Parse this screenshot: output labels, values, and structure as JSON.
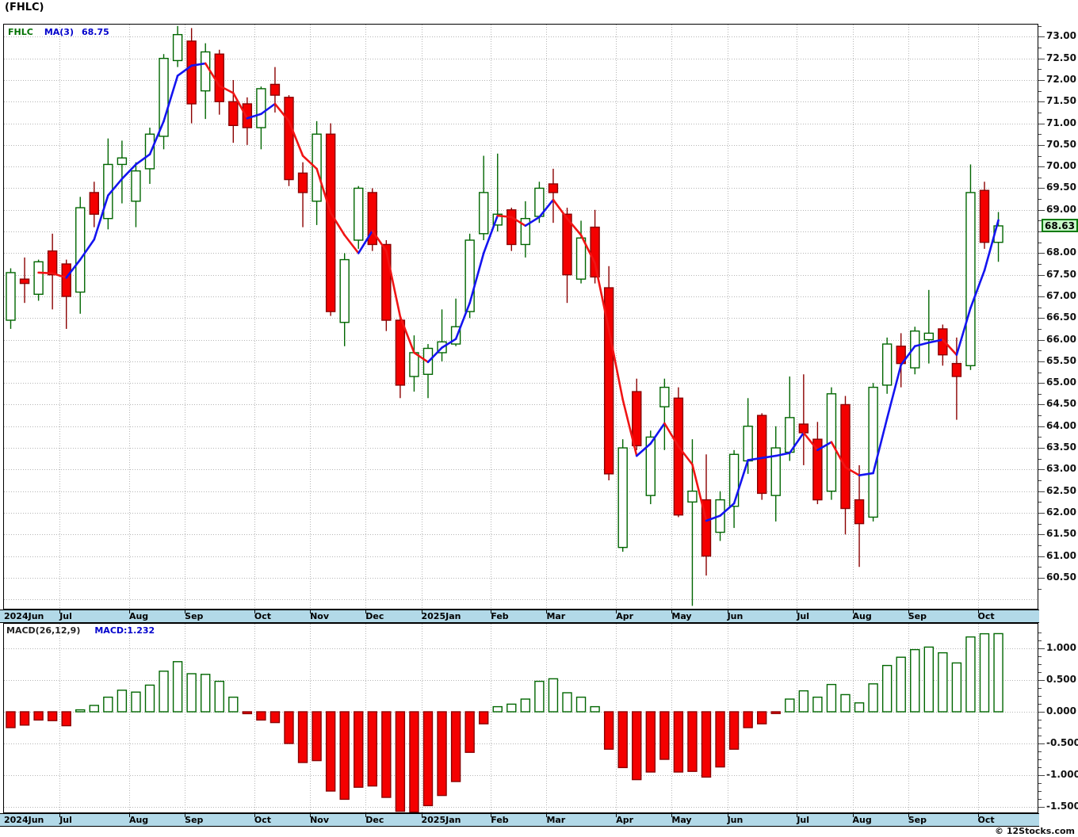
{
  "window": {
    "title": "(FHLC)"
  },
  "legend": {
    "symbol": "FHLC",
    "ma_label": "MA(3)",
    "ma_value": "68.75"
  },
  "macd_legend": {
    "label": "MACD(26,12,9)",
    "value": "MACD:1.232"
  },
  "price_badge": "68.63",
  "watermark": "© 12Stocks.com",
  "colors": {
    "up_stroke": "#006600",
    "up_fill": "#ffffff",
    "down_stroke": "#8b0000",
    "down_fill": "#f40000",
    "ma_up": "#1414f0",
    "ma_down": "#f01414",
    "grid": "#b5b5b5",
    "border": "#000000",
    "band_bg": "#b2d9e8",
    "badge_bg": "#c9f7c9",
    "badge_border": "#0a7a0a",
    "legend_symbol": "#007000",
    "legend_blue": "#0000cc"
  },
  "price_axis": {
    "labels": [
      "73.00",
      "72.50",
      "72.00",
      "71.50",
      "71.00",
      "70.50",
      "70.00",
      "69.50",
      "69.00",
      "68.00",
      "67.50",
      "67.00",
      "66.50",
      "66.00",
      "65.50",
      "65.00",
      "64.50",
      "64.00",
      "63.50",
      "63.00",
      "62.50",
      "62.00",
      "61.50",
      "61.00",
      "60.50"
    ]
  },
  "macd_axis": {
    "labels": [
      "1.000",
      "0.500",
      "0.000",
      "-0.500",
      "-1.000",
      "-1.500"
    ]
  },
  "months": [
    {
      "label": "2024Jun",
      "i": 0,
      "grid": false
    },
    {
      "label": "Jul",
      "i": 4,
      "grid": true
    },
    {
      "label": "Aug",
      "i": 9,
      "grid": true
    },
    {
      "label": "Sep",
      "i": 13,
      "grid": true
    },
    {
      "label": "Oct",
      "i": 18,
      "grid": true
    },
    {
      "label": "Nov",
      "i": 22,
      "grid": true
    },
    {
      "label": "Dec",
      "i": 26,
      "grid": true
    },
    {
      "label": "2025Jan",
      "i": 30,
      "grid": true
    },
    {
      "label": "Feb",
      "i": 35,
      "grid": true
    },
    {
      "label": "Mar",
      "i": 39,
      "grid": true
    },
    {
      "label": "Apr",
      "i": 44,
      "grid": true
    },
    {
      "label": "May",
      "i": 48,
      "grid": true
    },
    {
      "label": "Jun",
      "i": 52,
      "grid": true
    },
    {
      "label": "Jul",
      "i": 57,
      "grid": true
    },
    {
      "label": "Aug",
      "i": 61,
      "grid": true
    },
    {
      "label": "Sep",
      "i": 65,
      "grid": true
    },
    {
      "label": "Oct",
      "i": 70,
      "grid": true
    }
  ],
  "chart_data": {
    "type": "candlestick+macd-histogram",
    "symbol": "FHLC",
    "ma_period": 3,
    "ma_last": 68.75,
    "macd_params": [
      26,
      12,
      9
    ],
    "macd_last": 1.232,
    "last_close": 68.63,
    "price_ylim": [
      60.5,
      73.0
    ],
    "macd_ylim": [
      -1.5,
      1.0
    ],
    "period": "weekly, Jun 2024 - Oct 2025",
    "candles_ohlc": [
      [
        66.45,
        67.65,
        66.25,
        67.55
      ],
      [
        67.4,
        67.9,
        66.85,
        67.3
      ],
      [
        67.05,
        67.85,
        66.9,
        67.8
      ],
      [
        68.05,
        68.45,
        66.7,
        67.5
      ],
      [
        67.75,
        67.85,
        66.25,
        67.0
      ],
      [
        67.1,
        69.3,
        66.6,
        69.05
      ],
      [
        69.4,
        69.65,
        68.6,
        68.9
      ],
      [
        68.8,
        70.65,
        68.55,
        70.05
      ],
      [
        70.05,
        70.6,
        69.15,
        70.2
      ],
      [
        69.2,
        70.1,
        68.6,
        69.9
      ],
      [
        69.95,
        70.9,
        69.6,
        70.75
      ],
      [
        70.7,
        72.6,
        70.4,
        72.5
      ],
      [
        72.45,
        73.25,
        72.3,
        73.05
      ],
      [
        72.9,
        73.2,
        71.0,
        71.45
      ],
      [
        71.75,
        72.85,
        71.1,
        72.65
      ],
      [
        72.6,
        72.7,
        71.2,
        71.5
      ],
      [
        71.5,
        72.0,
        70.55,
        70.95
      ],
      [
        71.45,
        71.6,
        70.5,
        70.9
      ],
      [
        70.9,
        71.85,
        70.4,
        71.8
      ],
      [
        71.9,
        72.3,
        71.25,
        71.65
      ],
      [
        71.6,
        71.65,
        69.55,
        69.7
      ],
      [
        69.85,
        70.1,
        68.6,
        69.4
      ],
      [
        69.2,
        71.05,
        68.65,
        70.75
      ],
      [
        70.75,
        71.0,
        66.55,
        66.65
      ],
      [
        66.4,
        68.0,
        65.85,
        67.85
      ],
      [
        68.3,
        69.55,
        68.1,
        69.5
      ],
      [
        69.4,
        69.5,
        68.05,
        68.2
      ],
      [
        68.2,
        68.3,
        66.2,
        66.45
      ],
      [
        66.45,
        66.5,
        64.65,
        64.95
      ],
      [
        65.15,
        66.1,
        64.8,
        65.7
      ],
      [
        65.2,
        65.9,
        64.65,
        65.8
      ],
      [
        65.7,
        66.7,
        65.5,
        65.95
      ],
      [
        65.9,
        66.95,
        65.85,
        66.3
      ],
      [
        66.65,
        68.45,
        66.5,
        68.3
      ],
      [
        68.45,
        70.25,
        68.3,
        69.4
      ],
      [
        68.65,
        70.3,
        68.5,
        68.9
      ],
      [
        69.0,
        69.05,
        68.05,
        68.2
      ],
      [
        68.2,
        69.2,
        67.9,
        68.8
      ],
      [
        68.85,
        69.65,
        68.7,
        69.5
      ],
      [
        69.6,
        69.95,
        68.7,
        69.4
      ],
      [
        68.9,
        69.05,
        66.85,
        67.5
      ],
      [
        67.4,
        68.75,
        67.3,
        68.35
      ],
      [
        68.6,
        69.0,
        67.3,
        67.45
      ],
      [
        67.2,
        67.7,
        62.75,
        62.9
      ],
      [
        61.2,
        63.7,
        61.1,
        63.5
      ],
      [
        64.8,
        65.1,
        63.45,
        63.55
      ],
      [
        62.4,
        63.9,
        62.2,
        63.75
      ],
      [
        64.45,
        65.1,
        63.45,
        64.9
      ],
      [
        64.65,
        64.9,
        61.9,
        61.95
      ],
      [
        62.25,
        63.7,
        59.85,
        62.5
      ],
      [
        62.3,
        63.35,
        60.55,
        61.0
      ],
      [
        61.55,
        62.5,
        61.35,
        62.3
      ],
      [
        62.15,
        63.45,
        61.65,
        63.35
      ],
      [
        63.2,
        64.65,
        62.9,
        64.0
      ],
      [
        64.25,
        64.3,
        62.3,
        62.45
      ],
      [
        62.4,
        64.0,
        61.8,
        63.5
      ],
      [
        63.4,
        65.15,
        63.2,
        64.2
      ],
      [
        64.05,
        65.2,
        63.1,
        63.85
      ],
      [
        63.7,
        64.1,
        62.2,
        62.3
      ],
      [
        62.5,
        64.9,
        62.3,
        64.75
      ],
      [
        64.5,
        64.7,
        61.5,
        62.1
      ],
      [
        62.3,
        63.1,
        60.75,
        61.75
      ],
      [
        61.9,
        65.0,
        61.8,
        64.9
      ],
      [
        64.95,
        66.05,
        64.75,
        65.9
      ],
      [
        65.85,
        66.15,
        64.9,
        65.45
      ],
      [
        65.35,
        66.3,
        65.2,
        66.2
      ],
      [
        66.0,
        67.15,
        65.45,
        66.15
      ],
      [
        66.25,
        66.35,
        65.4,
        65.65
      ],
      [
        65.45,
        66.05,
        64.15,
        65.15
      ],
      [
        65.4,
        70.05,
        65.3,
        69.4
      ],
      [
        69.45,
        69.65,
        68.1,
        68.25
      ],
      [
        68.25,
        68.95,
        67.8,
        68.63
      ]
    ],
    "macd_histogram": [
      -0.25,
      -0.21,
      -0.13,
      -0.14,
      -0.22,
      0.03,
      0.1,
      0.23,
      0.34,
      0.31,
      0.42,
      0.64,
      0.79,
      0.6,
      0.59,
      0.48,
      0.23,
      -0.03,
      -0.13,
      -0.17,
      -0.5,
      -0.8,
      -0.77,
      -1.25,
      -1.38,
      -1.19,
      -1.17,
      -1.35,
      -1.57,
      -1.58,
      -1.48,
      -1.32,
      -1.1,
      -0.64,
      -0.19,
      0.08,
      0.12,
      0.2,
      0.48,
      0.52,
      0.3,
      0.23,
      0.08,
      -0.59,
      -0.88,
      -1.07,
      -0.95,
      -0.75,
      -0.95,
      -0.94,
      -1.03,
      -0.87,
      -0.59,
      -0.25,
      -0.19,
      -0.02,
      0.2,
      0.33,
      0.23,
      0.43,
      0.27,
      0.14,
      0.44,
      0.73,
      0.86,
      0.98,
      1.02,
      0.93,
      0.77,
      1.18,
      1.23,
      1.232
    ]
  }
}
